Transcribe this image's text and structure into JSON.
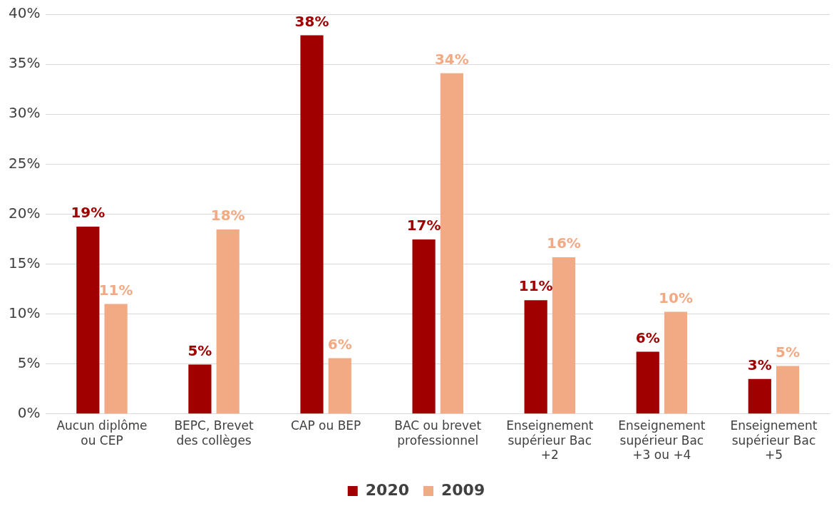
{
  "chart_data": {
    "type": "bar",
    "categories": [
      "Aucun diplôme ou CEP",
      "BEPC, Brevet des collèges",
      "CAP ou BEP",
      "BAC ou brevet professionnel",
      "Enseignement supérieur Bac +2",
      "Enseignement supérieur Bac +3 ou +4",
      "Enseignement supérieur Bac +5"
    ],
    "series": [
      {
        "name": "2020",
        "color": "#a00000",
        "values": [
          18.75,
          4.94,
          37.9,
          17.46,
          11.38,
          6.23,
          3.5
        ],
        "value_labels": [
          "19%",
          "5%",
          "38%",
          "17%",
          "11%",
          "6%",
          "3%"
        ]
      },
      {
        "name": "2009",
        "color": "#f2aa84",
        "values": [
          11.0,
          18.46,
          5.58,
          34.1,
          15.67,
          10.23,
          4.8
        ],
        "value_labels": [
          "11%",
          "18%",
          "6%",
          "34%",
          "16%",
          "10%",
          "5%"
        ]
      }
    ],
    "ylim": [
      0,
      40
    ],
    "yticks": [
      {
        "value": 0,
        "label": "0%"
      },
      {
        "value": 5,
        "label": "5%"
      },
      {
        "value": 10,
        "label": "10%"
      },
      {
        "value": 15,
        "label": "15%"
      },
      {
        "value": 20,
        "label": "20%"
      },
      {
        "value": 25,
        "label": "25%"
      },
      {
        "value": 30,
        "label": "30%"
      },
      {
        "value": 35,
        "label": "35%"
      },
      {
        "value": 40,
        "label": "40%"
      }
    ],
    "grid": "y",
    "legend": "bottom"
  }
}
